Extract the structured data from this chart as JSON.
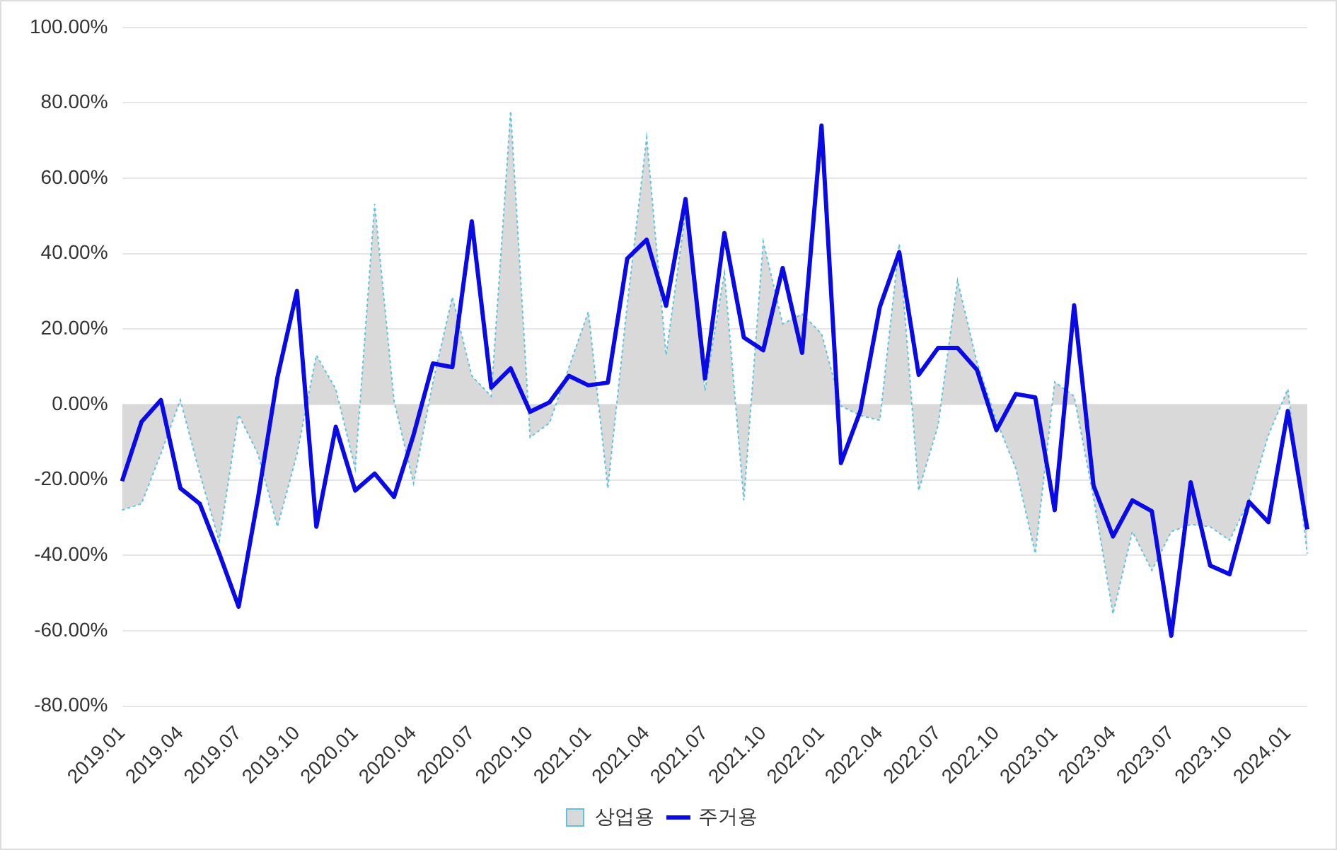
{
  "chart_data": {
    "type": "line",
    "categories": [
      "2019.01",
      null,
      null,
      "2019.04",
      null,
      null,
      "2019.07",
      null,
      null,
      "2019.10",
      null,
      null,
      "2020.01",
      null,
      null,
      "2020.04",
      null,
      null,
      "2020.07",
      null,
      null,
      "2020.10",
      null,
      null,
      "2021.01",
      null,
      null,
      "2021.04",
      null,
      null,
      "2021.07",
      null,
      null,
      "2021.10",
      null,
      null,
      "2022.01",
      null,
      null,
      "2022.04",
      null,
      null,
      "2022.07",
      null,
      null,
      "2022.10",
      null,
      null,
      "2023.01",
      null,
      null,
      "2023.04",
      null,
      null,
      "2023.07",
      null,
      null,
      "2023.10",
      null,
      null,
      "2024.01",
      null
    ],
    "series": [
      {
        "name": "상업용",
        "type": "area",
        "color": "#d9d9d9",
        "line_style": "dotted",
        "values": [
          -28,
          -26.3,
          -13,
          1.2,
          -18.3,
          -36.3,
          -2.7,
          -13.2,
          -32.4,
          -13.2,
          13.1,
          4.1,
          -17,
          53.2,
          0.9,
          -20.9,
          6,
          28.5,
          7.6,
          2.2,
          77.8,
          -8.7,
          -4.9,
          9.9,
          24.6,
          -22.2,
          26.5,
          70.8,
          13.1,
          50.9,
          3.7,
          34.9,
          -25.4,
          43.2,
          21.4,
          24,
          18.8,
          -0.4,
          -2.9,
          -4.2,
          42.6,
          -22.8,
          -5.5,
          32.9,
          11.2,
          -4.2,
          -17,
          -39.5,
          6,
          2.2,
          -24.7,
          -55.5,
          -33.7,
          -44,
          -33.7,
          -31.8,
          -32.4,
          -36,
          -25.4,
          -8.1,
          4.1,
          -39.5
        ]
      },
      {
        "name": "주거용",
        "type": "line",
        "color": "#0a0ae6",
        "values": [
          -20.3,
          -4.6,
          1.2,
          -22.2,
          -26.3,
          -39.5,
          -53.6,
          -24.7,
          7.3,
          30.1,
          -32.4,
          -5.9,
          -22.8,
          -18.3,
          -24.5,
          -8.1,
          10.9,
          9.9,
          48.6,
          4.5,
          9.6,
          -1.9,
          0.6,
          7.6,
          5.1,
          5.8,
          38.7,
          43.7,
          26.2,
          54.5,
          6.9,
          45.5,
          17.8,
          14.4,
          36.2,
          13.7,
          74,
          -15.5,
          -1.7,
          25.9,
          40.4,
          7.9,
          15,
          15,
          9.2,
          -6.8,
          2.8,
          1.9,
          -28,
          26.3,
          -21.5,
          -35,
          -25.4,
          -28.3,
          -61.3,
          -20.6,
          -42.7,
          -45,
          -25.8,
          -31.2,
          -1.7,
          -33.1
        ]
      }
    ],
    "ylim": [
      -80,
      100
    ],
    "yticks": [
      {
        "value": -80,
        "label": "-80.00%"
      },
      {
        "value": -60,
        "label": "-60.00%"
      },
      {
        "value": -40,
        "label": "-40.00%"
      },
      {
        "value": -20,
        "label": "-20.00%"
      },
      {
        "value": 0,
        "label": "0.00%"
      },
      {
        "value": 20,
        "label": "20.00%"
      },
      {
        "value": 40,
        "label": "40.00%"
      },
      {
        "value": 60,
        "label": "60.00%"
      },
      {
        "value": 80,
        "label": "80.00%"
      },
      {
        "value": 100,
        "label": "100.00%"
      }
    ],
    "grid": "y",
    "legend": "bottom",
    "marker": "none",
    "line_style": "solid"
  }
}
